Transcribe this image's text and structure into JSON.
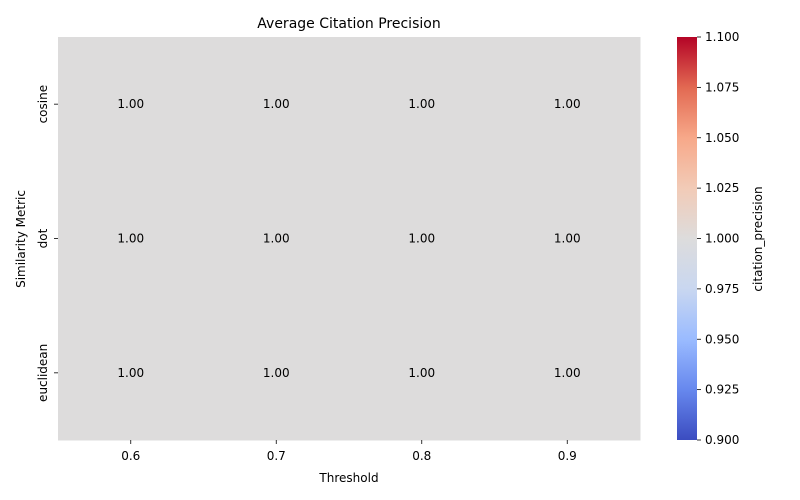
{
  "chart_data": {
    "type": "heatmap",
    "title": "Average Citation Precision",
    "xlabel": "Threshold",
    "ylabel": "Similarity Metric",
    "x_categories": [
      "0.6",
      "0.7",
      "0.8",
      "0.9"
    ],
    "y_categories": [
      "cosine",
      "dot",
      "euclidean"
    ],
    "values": [
      [
        1.0,
        1.0,
        1.0,
        1.0
      ],
      [
        1.0,
        1.0,
        1.0,
        1.0
      ],
      [
        1.0,
        1.0,
        1.0,
        1.0
      ]
    ],
    "cell_labels": [
      [
        "1.00",
        "1.00",
        "1.00",
        "1.00"
      ],
      [
        "1.00",
        "1.00",
        "1.00",
        "1.00"
      ],
      [
        "1.00",
        "1.00",
        "1.00",
        "1.00"
      ]
    ],
    "colorbar": {
      "label": "citation_precision",
      "colormap": "coolwarm",
      "range": [
        0.9,
        1.1
      ],
      "ticks": [
        "0.900",
        "0.925",
        "0.950",
        "0.975",
        "1.000",
        "1.025",
        "1.050",
        "1.075",
        "1.100"
      ],
      "tick_values": [
        0.9,
        0.925,
        0.95,
        0.975,
        1.0,
        1.025,
        1.05,
        1.075,
        1.1
      ],
      "stops": [
        "#3b4cc0",
        "#6788ee",
        "#9abbff",
        "#c9d7f0",
        "#dddcdc",
        "#f2cbb7",
        "#f7a889",
        "#e26952",
        "#b40426"
      ]
    },
    "grid": false
  }
}
